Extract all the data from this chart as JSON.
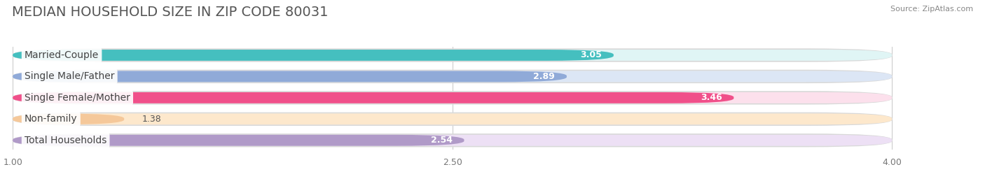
{
  "title": "MEDIAN HOUSEHOLD SIZE IN ZIP CODE 80031",
  "source": "Source: ZipAtlas.com",
  "categories": [
    "Married-Couple",
    "Single Male/Father",
    "Single Female/Mother",
    "Non-family",
    "Total Households"
  ],
  "values": [
    3.05,
    2.89,
    3.46,
    1.38,
    2.54
  ],
  "bar_colors": [
    "#45bfbf",
    "#90aad8",
    "#f0508a",
    "#f5c89a",
    "#b09ac8"
  ],
  "bar_bg_colors": [
    "#e0f5f5",
    "#dce6f5",
    "#fce0ec",
    "#fde8cc",
    "#ede0f5"
  ],
  "track_color": "#ebebeb",
  "background_color": "#ffffff",
  "xlim_data": [
    1.0,
    4.0
  ],
  "xticks": [
    1.0,
    2.5,
    4.0
  ],
  "xtick_labels": [
    "1.00",
    "2.50",
    "4.00"
  ],
  "title_fontsize": 14,
  "label_fontsize": 10,
  "value_fontsize": 9,
  "bar_height": 0.58
}
